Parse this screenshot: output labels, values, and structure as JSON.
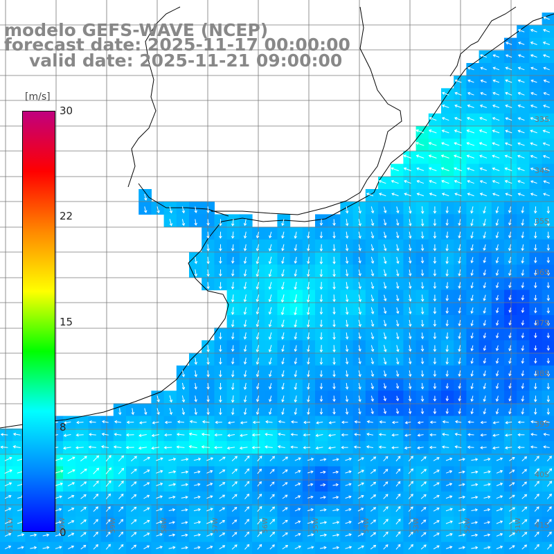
{
  "title": {
    "line1": "modelo GEFS-WAVE (NCEP)",
    "line2": "forecast date: 2025-11-17 00:00:00",
    "line3": "valid date: 2025-11-21 09:00:00"
  },
  "colorbar": {
    "unit_label": "[m/s]",
    "ticks": [
      "30",
      "22",
      "15",
      "8",
      "0"
    ],
    "range": [
      0,
      30
    ],
    "colors": [
      "#0000ff",
      "#0088ff",
      "#00ffff",
      "#00ff00",
      "#ffff00",
      "#ff8800",
      "#ff0000",
      "#c0007f"
    ]
  },
  "map": {
    "lat_labels": [
      "33S",
      "34S",
      "35S",
      "36S",
      "37S",
      "38S",
      "39S",
      "40S",
      "41S"
    ],
    "lon_labels": [
      "61W",
      "60W",
      "59W",
      "58W",
      "57W",
      "56W",
      "55W",
      "54W",
      "53W",
      "52W",
      "51W"
    ],
    "land_color": "#ffffff",
    "grid_color": "#777777",
    "coast_color": "#000000",
    "extent": {
      "lon": [
        -62,
        -51
      ],
      "lat": [
        -42,
        -31.5
      ]
    }
  }
}
